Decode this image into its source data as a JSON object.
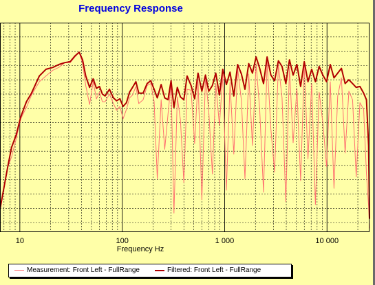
{
  "chart_data": {
    "type": "line",
    "title": "Frequency Response",
    "xlabel": "Frequency Hz",
    "ylabel": "",
    "xscale": "log",
    "xlim": [
      6.4,
      26000
    ],
    "ylim": [
      0,
      22
    ],
    "grid": true,
    "legend_position": "bottom",
    "x_tick_labels": [
      "10",
      "100",
      "1 000",
      "10 000"
    ],
    "x_tick_values": [
      10,
      100,
      1000,
      10000
    ],
    "colors": {
      "background": "#ffffa8",
      "measurement": "#ff7070",
      "filtered": "#b00000",
      "title": "#0000e0"
    },
    "series": [
      {
        "name": "Measurement: Front Left - FullRange",
        "x": [
          6.4,
          7.6,
          8.3,
          9.2,
          10.2,
          11.6,
          13,
          15.5,
          18,
          21,
          24,
          27.5,
          31,
          34.5,
          38,
          41,
          44,
          48,
          52,
          56,
          60,
          64,
          68,
          75,
          82,
          88,
          95,
          102,
          110,
          118,
          126,
          136,
          145,
          160,
          175,
          190,
          205,
          220,
          240,
          260,
          280,
          300,
          320,
          345,
          370,
          400,
          430,
          470,
          510,
          550,
          600,
          650,
          700,
          760,
          820,
          890,
          960,
          1040,
          1130,
          1230,
          1340,
          1460,
          1580,
          1720,
          1870,
          2030,
          2200,
          2400,
          2600,
          2830,
          3080,
          3350,
          3640,
          3960,
          4300,
          4670,
          5080,
          5520,
          6000,
          6520,
          7090,
          7710,
          8380,
          9110,
          9900,
          10760,
          11700,
          12720,
          13830,
          15030,
          16340,
          17760,
          19300,
          20980,
          22800,
          24300,
          25500,
          26000
        ],
        "values": [
          2.4,
          6.8,
          7.9,
          9.8,
          11.9,
          13.1,
          14.4,
          15.8,
          16.4,
          17.0,
          17.3,
          17.8,
          17.8,
          18.4,
          18.9,
          17.7,
          15.4,
          13.4,
          15.8,
          14.0,
          14.7,
          13.7,
          13.7,
          14.5,
          13.5,
          12.8,
          13.2,
          11.9,
          12.9,
          14.1,
          14.4,
          15.3,
          13.5,
          13.9,
          15.4,
          15.6,
          13.7,
          5.6,
          13.9,
          8.7,
          12.4,
          15.6,
          2.0,
          14.2,
          11.8,
          5.2,
          15.0,
          14.9,
          9.3,
          16.0,
          3.4,
          16.3,
          12.7,
          6.1,
          15.6,
          11.2,
          16.5,
          4.4,
          15.7,
          8.2,
          17.2,
          13.8,
          5.6,
          16.6,
          9.1,
          17.7,
          12.9,
          4.2,
          17.9,
          10.8,
          6.3,
          17.6,
          14.1,
          3.2,
          17.3,
          9.4,
          15.1,
          5.4,
          17.4,
          7.7,
          15.6,
          2.9,
          14.7,
          11.5,
          6.9,
          15.8,
          4.6,
          14.3,
          16.2,
          8.3,
          14.8,
          13.9,
          5.8,
          13.6,
          12.9,
          6.1,
          2.7,
          0.4
        ]
      },
      {
        "name": "Filtered: Front Left - FullRange",
        "x": [
          6.4,
          7.6,
          8.3,
          9.2,
          10.2,
          11.6,
          13,
          15.5,
          18,
          21,
          24,
          27.5,
          31,
          34.5,
          38,
          41,
          44,
          48,
          52,
          56,
          60,
          64,
          68,
          75,
          82,
          88,
          95,
          102,
          110,
          118,
          126,
          136,
          145,
          160,
          175,
          190,
          205,
          220,
          240,
          260,
          280,
          300,
          320,
          345,
          370,
          400,
          430,
          470,
          510,
          550,
          600,
          650,
          700,
          760,
          820,
          890,
          960,
          1040,
          1130,
          1230,
          1340,
          1460,
          1580,
          1720,
          1870,
          2030,
          2200,
          2400,
          2600,
          2830,
          3080,
          3350,
          3640,
          3960,
          4300,
          4670,
          5080,
          5520,
          6000,
          6520,
          7090,
          7710,
          8380,
          9110,
          9900,
          10760,
          11700,
          12720,
          13830,
          15030,
          16340,
          17760,
          19300,
          20980,
          22800,
          24300,
          25500,
          26000
        ],
        "values": [
          2.4,
          6.8,
          8.9,
          10.2,
          12.1,
          13.7,
          14.6,
          16.4,
          17.1,
          17.3,
          17.6,
          17.8,
          17.9,
          18.5,
          18.9,
          18.1,
          16.4,
          15.2,
          16.1,
          15.1,
          15.3,
          14.5,
          14.3,
          15.0,
          14.1,
          13.8,
          14.0,
          13.2,
          13.6,
          14.7,
          15.2,
          15.8,
          14.6,
          14.6,
          15.6,
          15.9,
          15.0,
          14.1,
          15.5,
          14.1,
          13.9,
          15.9,
          13.1,
          15.2,
          14.2,
          13.9,
          16.4,
          15.4,
          14.0,
          16.7,
          14.8,
          16.5,
          14.8,
          15.4,
          16.7,
          14.4,
          17.1,
          15.5,
          16.8,
          14.3,
          17.6,
          16.6,
          15.0,
          17.7,
          16.7,
          18.4,
          17.2,
          15.6,
          18.4,
          16.5,
          15.9,
          18.0,
          17.4,
          15.6,
          18.1,
          16.5,
          17.6,
          15.3,
          17.9,
          15.8,
          17.1,
          15.8,
          17.4,
          16.5,
          15.8,
          17.6,
          16.2,
          16.7,
          17.2,
          15.6,
          16.0,
          15.6,
          15.2,
          15.3,
          14.6,
          13.9,
          9.1,
          1.4
        ]
      }
    ]
  },
  "legend": {
    "measurement_label": "Measurement: Front Left - FullRange",
    "filtered_label": "Filtered: Front Left - FullRange"
  }
}
